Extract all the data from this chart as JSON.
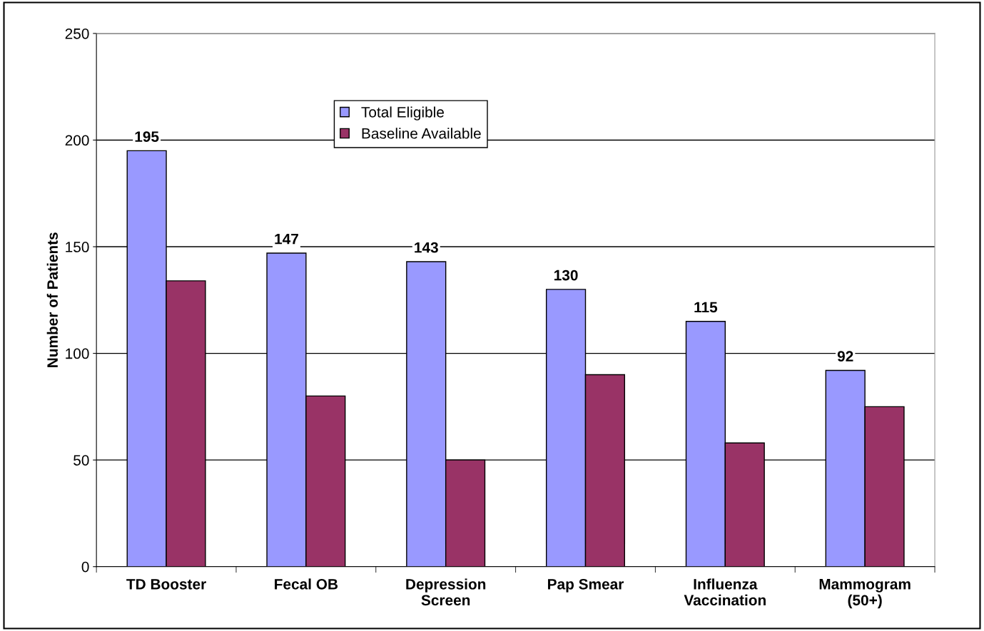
{
  "chart_data": {
    "type": "bar",
    "ylabel": "Number of Patients",
    "categories": [
      "TD Booster",
      "Fecal OB",
      "Depression\nScreen",
      "Pap Smear",
      "Influenza\nVaccination",
      "Mammogram\n(50+)"
    ],
    "series": [
      {
        "name": "Total Eligible",
        "color": "#9999ff",
        "values": [
          195,
          147,
          143,
          130,
          115,
          92
        ],
        "value_labels": [
          "195",
          "147",
          "143",
          "130",
          "115",
          "92"
        ]
      },
      {
        "name": "Baseline Available",
        "color": "#993366",
        "values": [
          134,
          80,
          50,
          90,
          58,
          75
        ]
      }
    ],
    "ylim": [
      0,
      250
    ],
    "yticks": [
      0,
      50,
      100,
      150,
      200,
      250
    ],
    "grid": "y",
    "legend": "top"
  }
}
